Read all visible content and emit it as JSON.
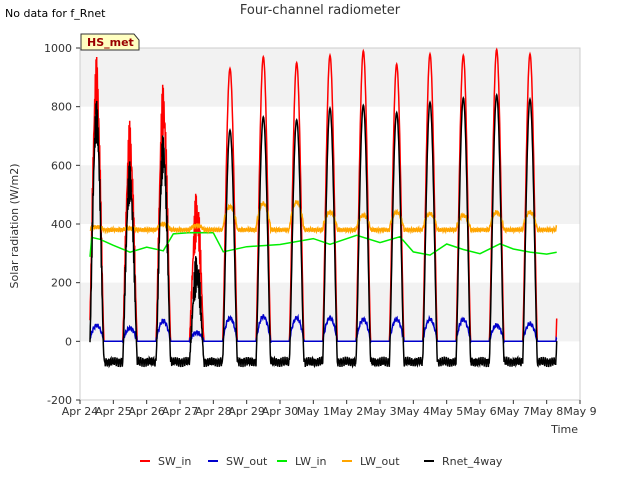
{
  "note": "No data for f_Rnet",
  "chart_data": {
    "type": "line",
    "title": "Four-channel radiometer",
    "xlabel": "Time",
    "ylabel": "Solar radiation (W/m2)",
    "badge": "HS_met",
    "ylim": [
      -200,
      1000
    ],
    "yticks": [
      -200,
      0,
      200,
      400,
      600,
      800,
      1000
    ],
    "xlim": [
      0,
      15
    ],
    "xticks": [
      {
        "x": 0,
        "label": "Apr 24"
      },
      {
        "x": 1,
        "label": "Apr 25"
      },
      {
        "x": 2,
        "label": "Apr 26"
      },
      {
        "x": 3,
        "label": "Apr 27"
      },
      {
        "x": 4,
        "label": "Apr 28"
      },
      {
        "x": 5,
        "label": "Apr 29"
      },
      {
        "x": 6,
        "label": "Apr 30"
      },
      {
        "x": 7,
        "label": "May 1"
      },
      {
        "x": 8,
        "label": "May 2"
      },
      {
        "x": 9,
        "label": "May 3"
      },
      {
        "x": 10,
        "label": "May 4"
      },
      {
        "x": 11,
        "label": "May 5"
      },
      {
        "x": 12,
        "label": "May 6"
      },
      {
        "x": 13,
        "label": "May 7"
      },
      {
        "x": 14,
        "label": "May 8"
      },
      {
        "x": 15,
        "label": "May 9"
      }
    ],
    "grid_bands": true,
    "legend_position": "bottom",
    "data_range": [
      0.3,
      14.3
    ],
    "series": [
      {
        "name": "SW_in",
        "color": "#ff0000",
        "daily_peaks": [
          890,
          700,
          850,
          490,
          930,
          970,
          950,
          975,
          990,
          945,
          980,
          975,
          995,
          980
        ],
        "night_value": 0
      },
      {
        "name": "SW_out",
        "color": "#0000cc",
        "daily_peaks": [
          55,
          45,
          70,
          30,
          80,
          85,
          80,
          80,
          75,
          75,
          75,
          75,
          55,
          60
        ],
        "night_value": 0
      },
      {
        "name": "LW_in",
        "color": "#00ee00",
        "daily_levels": [
          350,
          320,
          310,
          365,
          370,
          320,
          330,
          340,
          335,
          330,
          310,
          300,
          320,
          310,
          305
        ],
        "points": [
          [
            0.3,
            290
          ],
          [
            0.35,
            355
          ],
          [
            0.6,
            340
          ],
          [
            1.0,
            330
          ],
          [
            1.5,
            300
          ],
          [
            2.0,
            320
          ],
          [
            2.5,
            310
          ],
          [
            2.8,
            360
          ],
          [
            3.3,
            365
          ],
          [
            4.0,
            375
          ],
          [
            4.3,
            310
          ],
          [
            5.0,
            320
          ],
          [
            6.0,
            330
          ],
          [
            7.0,
            350
          ],
          [
            7.5,
            330
          ],
          [
            8.3,
            365
          ],
          [
            9.0,
            330
          ],
          [
            9.6,
            360
          ],
          [
            10.0,
            310
          ],
          [
            10.5,
            300
          ],
          [
            11.0,
            330
          ],
          [
            11.5,
            310
          ],
          [
            12.0,
            300
          ],
          [
            12.6,
            330
          ],
          [
            13.0,
            310
          ],
          [
            13.5,
            305
          ],
          [
            14.0,
            305
          ],
          [
            14.3,
            305
          ]
        ]
      },
      {
        "name": "LW_out",
        "color": "#ffa500",
        "daily_peaks": [
          390,
          385,
          400,
          395,
          460,
          470,
          475,
          440,
          430,
          440,
          435,
          430,
          440,
          440
        ],
        "night_value": 380
      },
      {
        "name": "Rnet_4way",
        "color": "#000000",
        "daily_peaks": [
          760,
          575,
          685,
          280,
          720,
          765,
          755,
          795,
          805,
          780,
          815,
          830,
          840,
          825
        ],
        "night_value": -70
      }
    ]
  }
}
